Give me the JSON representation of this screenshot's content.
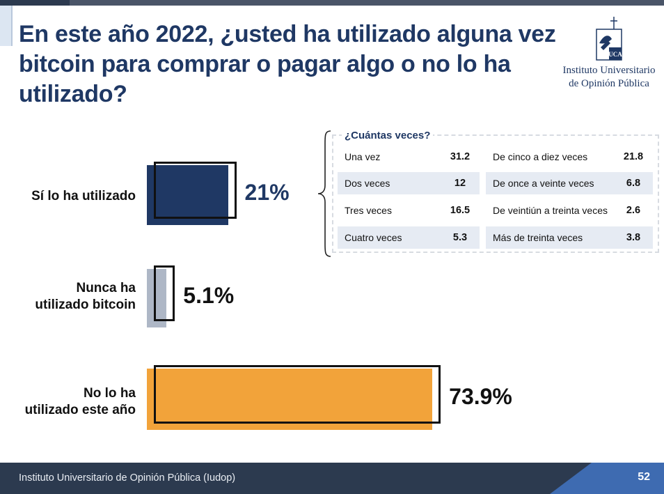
{
  "slide": {
    "title": "En este año 2022, ¿usted ha utilizado alguna vez bitcoin para comprar o pagar algo o no lo ha utilizado?",
    "logo_line1": "Instituto Universitario",
    "logo_line2": "de Opinión Pública",
    "logo_mark_text": "UCA"
  },
  "chart_data": {
    "type": "bar",
    "orientation": "horizontal",
    "categories": [
      "Sí lo ha utilizado",
      "Nunca ha utilizado bitcoin",
      "No lo ha utilizado este año"
    ],
    "category_lines": [
      [
        "Sí lo ha utilizado"
      ],
      [
        "Nunca ha",
        "utilizado bitcoin"
      ],
      [
        "No lo ha",
        "utilizado este año"
      ]
    ],
    "values": [
      21,
      5.1,
      73.9
    ],
    "value_labels": [
      "21%",
      "5.1%",
      "73.9%"
    ],
    "colors": [
      "#1f3864",
      "#aeb7c6",
      "#f2a33a"
    ],
    "xlim": [
      0,
      100
    ],
    "grid": false,
    "breakdown": {
      "title": "¿Cuántas veces?",
      "applies_to": "Sí lo ha utilizado",
      "items": [
        {
          "label": "Una vez",
          "value": 31.2
        },
        {
          "label": "Dos veces",
          "value": 12
        },
        {
          "label": "Tres veces",
          "value": 16.5
        },
        {
          "label": "Cuatro veces",
          "value": 5.3
        },
        {
          "label": "De cinco a diez veces",
          "value": 21.8
        },
        {
          "label": "De once a veinte veces",
          "value": 6.8
        },
        {
          "label": "De veintiún a treinta veces",
          "value": 2.6
        },
        {
          "label": "Más de treinta veces",
          "value": 3.8
        }
      ]
    }
  },
  "footer": {
    "org": "Instituto Universitario de Opinión Pública (Iudop)",
    "page": "52"
  }
}
